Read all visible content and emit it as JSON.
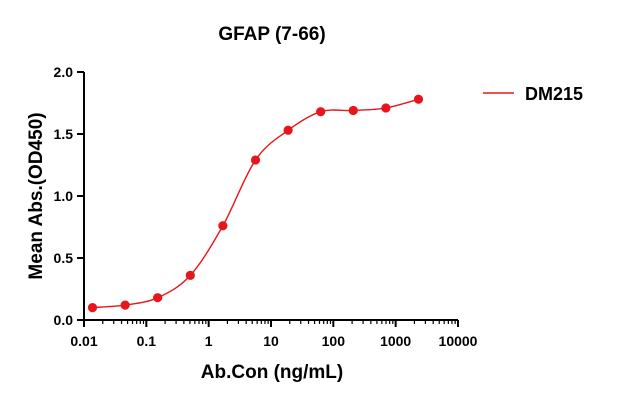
{
  "chart_data": {
    "type": "scatter",
    "title": "GFAP (7-66)",
    "xlabel": "Ab.Con (ng/mL)",
    "ylabel": "Mean Abs.(OD450)",
    "xscale": "log",
    "xlim": [
      0.01,
      10000
    ],
    "ylim": [
      0,
      2.0
    ],
    "x_ticks": [
      "0.01",
      "0.1",
      "1",
      "10",
      "100",
      "1000",
      "10000"
    ],
    "x_tick_values": [
      0.01,
      0.1,
      1,
      10,
      100,
      1000,
      10000
    ],
    "y_ticks": [
      "0.0",
      "0.5",
      "1.0",
      "1.5",
      "2.0"
    ],
    "y_tick_values": [
      0,
      0.5,
      1.0,
      1.5,
      2.0
    ],
    "grid": false,
    "legend_position": "top-right",
    "series": [
      {
        "name": "DM215",
        "color": "#e8161b",
        "fit": "4PL sigmoid curve",
        "x": [
          0.0137,
          0.0457,
          0.152,
          0.508,
          1.69,
          5.64,
          18.8,
          62.7,
          209,
          697,
          2323
        ],
        "y": [
          0.1,
          0.12,
          0.18,
          0.36,
          0.76,
          1.29,
          1.53,
          1.68,
          1.69,
          1.71,
          1.78
        ]
      }
    ]
  }
}
